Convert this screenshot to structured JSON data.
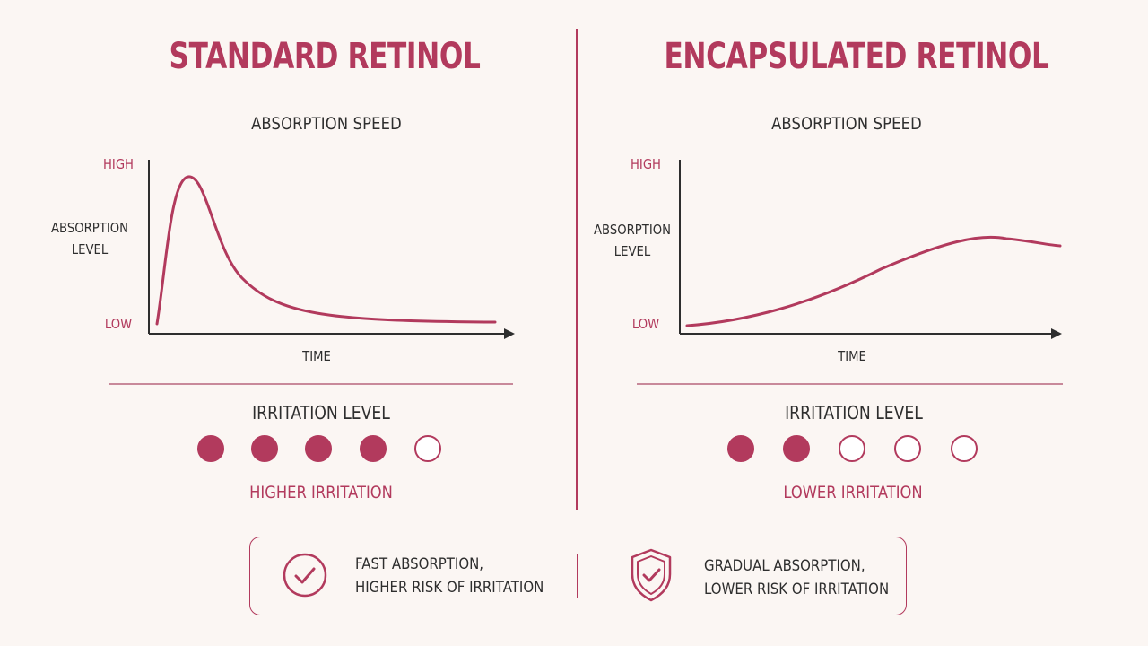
{
  "left": {
    "title": "STANDARD RETINOL",
    "chart_title": "ABSORPTION SPEED",
    "y_high": "HIGH",
    "y_low": "LOW",
    "y_label_line1": "ABSORPTION",
    "y_label_line2": "LEVEL",
    "x_label": "TIME",
    "irritation_title": "IRRITATION LEVEL",
    "irritation_filled": 4,
    "irritation_total": 5,
    "irritation_caption": "HIGHER IRRITATION"
  },
  "right": {
    "title": "ENCAPSULATED RETINOL",
    "chart_title": "ABSORPTION SPEED",
    "y_high": "HIGH",
    "y_low": "LOW",
    "y_label_line1": "ABSORPTION",
    "y_label_line2": "LEVEL",
    "x_label": "TIME",
    "irritation_title": "IRRITATION LEVEL",
    "irritation_filled": 2,
    "irritation_total": 5,
    "irritation_caption": "LOWER IRRITATION"
  },
  "summary": {
    "left_line1": "FAST ABSORPTION,",
    "left_line2": "HIGHER RISK OF IRRITATION",
    "right_line1": "GRADUAL ABSORPTION,",
    "right_line2": "LOWER RISK OF IRRITATION",
    "left_icon": "check-circle-icon",
    "right_icon": "shield-check-icon"
  },
  "colors": {
    "accent": "#b23a5d",
    "text": "#2e2e2e",
    "background": "#fbf6f3"
  }
}
